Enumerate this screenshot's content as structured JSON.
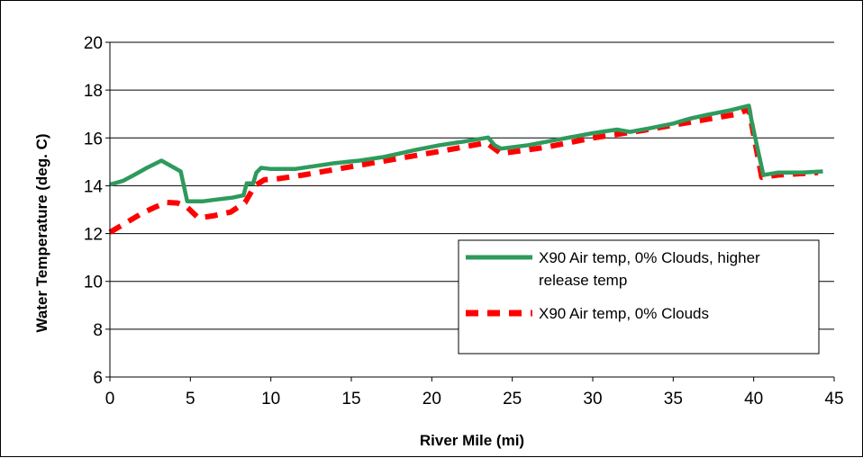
{
  "chart_data": {
    "type": "line",
    "title": "",
    "xlabel": "River Mile (mi)",
    "ylabel": "Water Temperature (deg. C)",
    "xlim": [
      0,
      45
    ],
    "ylim": [
      6,
      20
    ],
    "xticks": [
      0,
      5,
      10,
      15,
      20,
      25,
      30,
      35,
      40,
      45
    ],
    "yticks": [
      6,
      8,
      10,
      12,
      14,
      16,
      18,
      20
    ],
    "grid": "horizontal",
    "legend_position": "lower-right",
    "series": [
      {
        "name": "X90 Air temp, 0% Clouds, higher release temp",
        "color": "#2e9a5c",
        "style": "solid",
        "x": [
          0,
          0.8,
          1.5,
          2.3,
          3.2,
          4.4,
          4.8,
          5.8,
          6.6,
          7.6,
          8.3,
          8.5,
          8.9,
          9.1,
          9.4,
          10.0,
          11.5,
          12.5,
          14.0,
          15.5,
          17.0,
          18.0,
          19.0,
          20.5,
          22.0,
          23.5,
          23.9,
          24.3,
          26.0,
          28.0,
          30.0,
          31.5,
          32.3,
          33.5,
          35.0,
          36.0,
          37.0,
          38.5,
          39.7,
          39.9,
          40.6,
          41.5,
          43.0,
          44.3
        ],
        "y": [
          14.05,
          14.2,
          14.45,
          14.75,
          15.05,
          14.6,
          13.35,
          13.35,
          13.42,
          13.5,
          13.6,
          14.1,
          14.1,
          14.55,
          14.75,
          14.7,
          14.7,
          14.8,
          14.95,
          15.05,
          15.2,
          15.35,
          15.5,
          15.7,
          15.85,
          16.02,
          15.7,
          15.55,
          15.7,
          15.95,
          16.2,
          16.35,
          16.25,
          16.4,
          16.6,
          16.8,
          16.95,
          17.15,
          17.35,
          16.6,
          14.45,
          14.55,
          14.55,
          14.6
        ]
      },
      {
        "name": "X90 Air temp, 0% Clouds",
        "color": "#ff0000",
        "style": "dashed",
        "x": [
          0,
          1.0,
          2.0,
          2.8,
          3.5,
          4.2,
          4.8,
          5.5,
          6.5,
          7.5,
          8.4,
          9.0,
          9.6,
          10.5,
          12.0,
          15.0,
          18.0,
          21.0,
          23.4,
          24.3,
          27.0,
          30.0,
          33.0,
          36.0,
          39.0,
          39.7,
          40.5,
          41.5,
          44.0
        ],
        "y": [
          12.05,
          12.45,
          12.85,
          13.1,
          13.3,
          13.28,
          13.1,
          12.65,
          12.75,
          12.9,
          13.3,
          14.0,
          14.25,
          14.3,
          14.45,
          14.8,
          15.15,
          15.5,
          15.8,
          15.35,
          15.6,
          16.0,
          16.3,
          16.65,
          17.0,
          17.2,
          14.35,
          14.45,
          14.55
        ]
      }
    ]
  }
}
